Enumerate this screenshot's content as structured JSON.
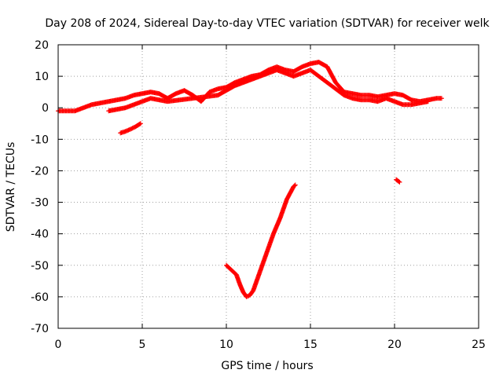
{
  "chart_data": {
    "type": "scatter",
    "title": "Day 208 of 2024, Sidereal Day-to-day VTEC variation (SDTVAR) for receiver welk",
    "xlabel": "GPS time / hours",
    "ylabel": "SDTVAR / TECUs",
    "xlim": [
      0,
      25
    ],
    "ylim": [
      -70,
      20
    ],
    "xticks": [
      0,
      5,
      10,
      15,
      20,
      25
    ],
    "yticks": [
      -70,
      -60,
      -50,
      -40,
      -30,
      -20,
      -10,
      0,
      10,
      20
    ],
    "grid": true,
    "legend": "none",
    "marker": "+",
    "series": [
      {
        "name": "main-trace",
        "color": "#ff0000",
        "x": [
          0.0,
          0.5,
          1.0,
          1.5,
          2.0,
          2.5,
          3.0,
          3.5,
          4.0,
          4.5,
          5.0,
          5.5,
          6.0,
          6.5,
          7.0,
          7.5,
          8.0,
          8.5,
          9.0,
          9.5,
          10.0,
          10.5,
          11.0,
          11.5,
          12.0,
          12.5,
          13.0,
          13.5,
          14.0,
          14.5,
          15.0,
          15.5,
          16.0,
          16.5,
          17.0,
          17.5,
          18.0,
          18.5,
          19.0,
          19.5,
          20.0,
          20.5,
          21.0,
          21.5,
          22.0,
          22.5,
          22.8
        ],
        "y": [
          -1,
          -1,
          -1,
          0,
          1,
          1.5,
          2,
          2.5,
          3,
          4,
          4.5,
          5,
          4.5,
          3,
          4.5,
          5.5,
          4,
          2,
          5,
          6,
          6.5,
          8,
          9,
          10,
          10.5,
          12,
          13,
          12,
          11.5,
          13,
          14,
          14.5,
          13,
          8,
          5,
          4.5,
          4,
          4,
          3.5,
          4,
          4.5,
          4,
          2.5,
          2,
          2.5,
          3,
          3
        ]
      },
      {
        "name": "secondary-trace",
        "color": "#ff0000",
        "x": [
          3.0,
          3.5,
          4.0,
          4.5,
          5.0,
          5.5,
          6.0,
          6.5,
          9.5,
          10.5,
          11.5,
          12.5,
          13.0,
          13.5,
          14.0,
          14.5,
          15.0,
          15.5,
          16.0,
          16.5,
          17.0,
          17.5,
          18.0,
          18.5,
          19.0,
          19.5,
          20.0,
          20.5,
          21.0,
          21.5,
          22.0
        ],
        "y": [
          -1,
          -0.5,
          0,
          1,
          2,
          3,
          2.5,
          2,
          4,
          7,
          9,
          11,
          12,
          11,
          10,
          11,
          12,
          10,
          8,
          6,
          4,
          3,
          2.5,
          2.5,
          2,
          3,
          2,
          1,
          1,
          1.5,
          2
        ]
      },
      {
        "name": "short-segment",
        "color": "#ff0000",
        "x": [
          3.7,
          4.0,
          4.3,
          4.6,
          4.9
        ],
        "y": [
          -8,
          -7.5,
          -6.8,
          -6,
          -5
        ]
      },
      {
        "name": "dip-segment",
        "color": "#ff0000",
        "x": [
          10.0,
          10.2,
          10.4,
          10.6,
          10.8,
          11.0,
          11.2,
          11.4,
          11.6,
          11.8,
          12.0,
          12.2,
          12.4,
          12.6,
          12.8,
          13.0,
          13.2,
          13.4,
          13.6,
          13.8,
          14.0,
          14.1
        ],
        "y": [
          -50,
          -51,
          -52,
          -53,
          -56,
          -58.5,
          -60,
          -59.5,
          -58,
          -55,
          -52,
          -49,
          -46,
          -43,
          -40,
          -37.5,
          -35,
          -32,
          -29,
          -27,
          -25,
          -24.5
        ]
      },
      {
        "name": "isolated-point",
        "color": "#ff0000",
        "x": [
          20.1,
          20.3
        ],
        "y": [
          -22.8,
          -23.6
        ]
      }
    ]
  }
}
